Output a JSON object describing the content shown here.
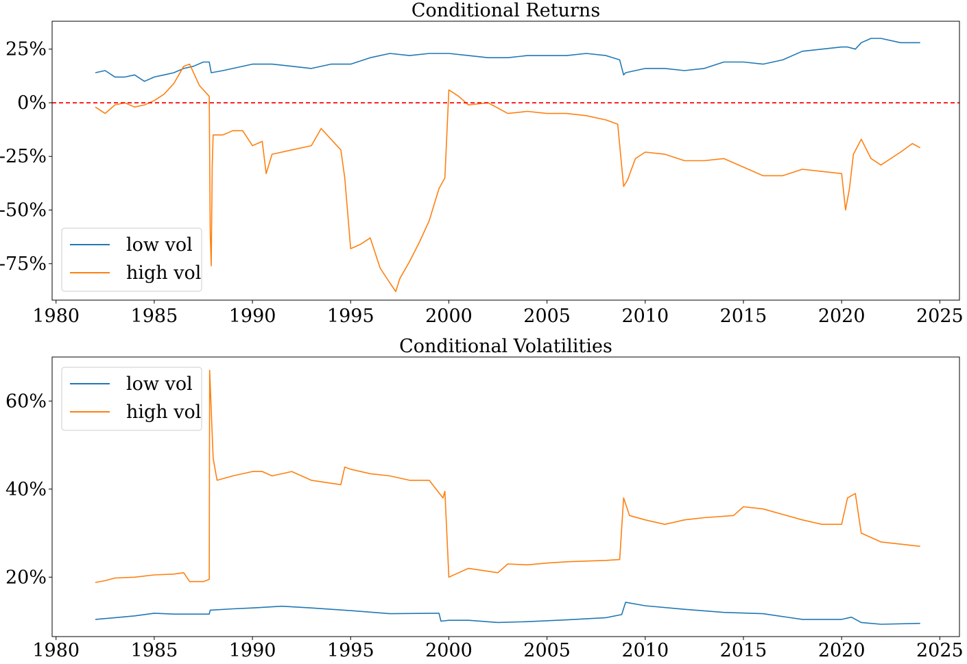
{
  "chart_data": [
    {
      "type": "line",
      "title": "Conditional Returns",
      "xlabel": "",
      "ylabel": "",
      "xlim": [
        1979.8,
        2026.0
      ],
      "ylim": [
        -0.92,
        0.38
      ],
      "x_ticks": [
        1980,
        1985,
        1990,
        1995,
        2000,
        2005,
        2010,
        2015,
        2020,
        2025
      ],
      "y_ticks": [
        0.25,
        0,
        -0.25,
        -0.5,
        -0.75
      ],
      "y_tick_labels": [
        "25%",
        "0%",
        "-25%",
        "-50%",
        "-75%"
      ],
      "reference_line": {
        "y": 0,
        "color": "#ff0000",
        "style": "dashed"
      },
      "legend": {
        "position": "lower-left",
        "entries": [
          "low vol",
          "high vol"
        ]
      },
      "series": [
        {
          "name": "low vol",
          "color": "#1f77b4",
          "x": [
            1982.0,
            1982.5,
            1983.0,
            1983.5,
            1984.0,
            1984.5,
            1985.0,
            1985.5,
            1986.0,
            1986.5,
            1987.0,
            1987.5,
            1987.8,
            1987.9,
            1988.5,
            1989.0,
            1990.0,
            1991.0,
            1992.0,
            1993.0,
            1994.0,
            1995.0,
            1996.0,
            1997.0,
            1998.0,
            1999.0,
            2000.0,
            2001.0,
            2002.0,
            2003.0,
            2004.0,
            2005.0,
            2006.0,
            2007.0,
            2008.0,
            2008.7,
            2008.9,
            2009.0,
            2009.5,
            2010.0,
            2011.0,
            2012.0,
            2013.0,
            2014.0,
            2015.0,
            2016.0,
            2017.0,
            2018.0,
            2019.0,
            2020.0,
            2020.3,
            2020.7,
            2021.0,
            2021.5,
            2022.0,
            2023.0,
            2024.0
          ],
          "values": [
            0.14,
            0.15,
            0.12,
            0.12,
            0.13,
            0.1,
            0.12,
            0.13,
            0.14,
            0.16,
            0.17,
            0.19,
            0.19,
            0.14,
            0.15,
            0.16,
            0.18,
            0.18,
            0.17,
            0.16,
            0.18,
            0.18,
            0.21,
            0.23,
            0.22,
            0.23,
            0.23,
            0.22,
            0.21,
            0.21,
            0.22,
            0.22,
            0.22,
            0.23,
            0.22,
            0.2,
            0.13,
            0.14,
            0.15,
            0.16,
            0.16,
            0.15,
            0.16,
            0.19,
            0.19,
            0.18,
            0.2,
            0.24,
            0.25,
            0.26,
            0.26,
            0.25,
            0.28,
            0.3,
            0.3,
            0.28,
            0.28
          ]
        },
        {
          "name": "high vol",
          "color": "#ff7f0e",
          "x": [
            1982.0,
            1982.5,
            1983.0,
            1983.5,
            1984.0,
            1984.5,
            1985.0,
            1985.5,
            1986.0,
            1986.5,
            1986.8,
            1987.3,
            1987.8,
            1987.85,
            1987.9,
            1987.95,
            1988.0,
            1988.5,
            1989.0,
            1989.5,
            1990.0,
            1990.5,
            1990.7,
            1991.0,
            1992.0,
            1993.0,
            1993.5,
            1994.0,
            1994.5,
            1994.7,
            1995.0,
            1995.5,
            1996.0,
            1996.5,
            1997.0,
            1997.3,
            1997.5,
            1998.0,
            1998.5,
            1999.0,
            1999.5,
            1999.8,
            2000.0,
            2000.5,
            2001.0,
            2002.0,
            2003.0,
            2004.0,
            2005.0,
            2006.0,
            2007.0,
            2008.0,
            2008.6,
            2008.9,
            2009.1,
            2009.5,
            2010.0,
            2011.0,
            2012.0,
            2013.0,
            2014.0,
            2015.0,
            2016.0,
            2017.0,
            2018.0,
            2019.0,
            2020.0,
            2020.2,
            2020.4,
            2020.6,
            2021.0,
            2021.5,
            2022.0,
            2023.0,
            2023.6,
            2024.0
          ],
          "values": [
            -0.02,
            -0.05,
            -0.01,
            0.0,
            -0.02,
            -0.01,
            0.01,
            0.04,
            0.09,
            0.17,
            0.18,
            0.08,
            0.03,
            -0.6,
            -0.76,
            -0.3,
            -0.15,
            -0.15,
            -0.13,
            -0.13,
            -0.2,
            -0.18,
            -0.33,
            -0.24,
            -0.22,
            -0.2,
            -0.12,
            -0.17,
            -0.22,
            -0.35,
            -0.68,
            -0.66,
            -0.63,
            -0.77,
            -0.84,
            -0.88,
            -0.82,
            -0.74,
            -0.65,
            -0.55,
            -0.4,
            -0.35,
            0.06,
            0.03,
            -0.01,
            0.0,
            -0.05,
            -0.04,
            -0.05,
            -0.05,
            -0.06,
            -0.08,
            -0.1,
            -0.39,
            -0.36,
            -0.26,
            -0.23,
            -0.24,
            -0.27,
            -0.27,
            -0.26,
            -0.3,
            -0.34,
            -0.34,
            -0.31,
            -0.32,
            -0.33,
            -0.5,
            -0.4,
            -0.24,
            -0.17,
            -0.26,
            -0.29,
            -0.23,
            -0.19,
            -0.21
          ]
        }
      ]
    },
    {
      "type": "line",
      "title": "Conditional Volatilities",
      "xlabel": "",
      "ylabel": "",
      "xlim": [
        1979.8,
        2026.0
      ],
      "ylim": [
        0.065,
        0.7
      ],
      "x_ticks": [
        1980,
        1985,
        1990,
        1995,
        2000,
        2005,
        2010,
        2015,
        2020,
        2025
      ],
      "y_ticks": [
        0.6,
        0.4,
        0.2
      ],
      "y_tick_labels": [
        "60%",
        "40%",
        "20%"
      ],
      "legend": {
        "position": "top-left",
        "entries": [
          "low vol",
          "high vol"
        ]
      },
      "series": [
        {
          "name": "low vol",
          "color": "#1f77b4",
          "x": [
            1982.0,
            1983.0,
            1984.0,
            1985.0,
            1986.0,
            1987.0,
            1987.8,
            1987.85,
            1989.0,
            1990.0,
            1991.5,
            1993.0,
            1995.0,
            1997.0,
            1999.5,
            1999.6,
            2000.0,
            2001.0,
            2002.5,
            2004.0,
            2006.0,
            2008.0,
            2008.8,
            2009.0,
            2010.0,
            2012.0,
            2014.0,
            2016.0,
            2018.0,
            2020.0,
            2020.5,
            2021.0,
            2022.0,
            2024.0
          ],
          "values": [
            0.104,
            0.108,
            0.112,
            0.118,
            0.116,
            0.116,
            0.116,
            0.125,
            0.128,
            0.13,
            0.134,
            0.13,
            0.124,
            0.117,
            0.118,
            0.1,
            0.102,
            0.102,
            0.097,
            0.099,
            0.103,
            0.108,
            0.115,
            0.143,
            0.135,
            0.127,
            0.12,
            0.117,
            0.104,
            0.104,
            0.109,
            0.097,
            0.093,
            0.095
          ]
        },
        {
          "name": "high vol",
          "color": "#ff7f0e",
          "x": [
            1982.0,
            1982.5,
            1983.0,
            1984.0,
            1985.0,
            1986.0,
            1986.5,
            1986.8,
            1987.5,
            1987.8,
            1987.82,
            1988.0,
            1988.2,
            1989.0,
            1990.0,
            1990.5,
            1991.0,
            1992.0,
            1993.0,
            1994.5,
            1994.7,
            1995.0,
            1996.0,
            1997.0,
            1998.0,
            1999.0,
            1999.7,
            1999.8,
            2000.0,
            2000.5,
            2001.0,
            2002.5,
            2003.0,
            2004.0,
            2005.0,
            2006.0,
            2008.0,
            2008.7,
            2008.9,
            2009.2,
            2010.0,
            2011.0,
            2012.0,
            2013.0,
            2014.5,
            2015.0,
            2016.0,
            2018.0,
            2019.0,
            2020.0,
            2020.3,
            2020.7,
            2021.0,
            2021.5,
            2022.0,
            2023.0,
            2024.0
          ],
          "values": [
            0.188,
            0.192,
            0.198,
            0.2,
            0.205,
            0.207,
            0.21,
            0.19,
            0.19,
            0.195,
            0.67,
            0.47,
            0.42,
            0.43,
            0.44,
            0.44,
            0.43,
            0.44,
            0.42,
            0.41,
            0.45,
            0.445,
            0.435,
            0.43,
            0.42,
            0.42,
            0.38,
            0.395,
            0.2,
            0.21,
            0.22,
            0.21,
            0.23,
            0.228,
            0.232,
            0.235,
            0.238,
            0.24,
            0.38,
            0.34,
            0.33,
            0.32,
            0.33,
            0.335,
            0.34,
            0.36,
            0.355,
            0.33,
            0.32,
            0.32,
            0.38,
            0.39,
            0.3,
            0.29,
            0.28,
            0.275,
            0.27
          ]
        }
      ]
    }
  ]
}
